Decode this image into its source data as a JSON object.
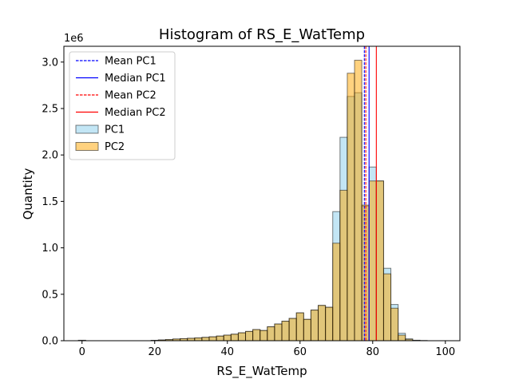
{
  "chart_data": {
    "type": "bar",
    "title": "Histogram of RS_E_WatTemp",
    "xlabel": "RS_E_WatTemp",
    "ylabel": "Quantity",
    "offset_text": "1e6",
    "xlim": [
      -5,
      104
    ],
    "ylim": [
      0,
      3.17
    ],
    "bin_start": -1.0,
    "bin_width": 2.0,
    "x_ticks": [
      0,
      20,
      40,
      60,
      80,
      100
    ],
    "y_ticks": [
      0.0,
      0.5,
      1.0,
      1.5,
      2.0,
      2.5,
      3.0
    ],
    "x_tick_labels": [
      "0",
      "20",
      "40",
      "60",
      "80",
      "100"
    ],
    "y_tick_labels": [
      "0.0",
      "0.5",
      "1.0",
      "1.5",
      "2.0",
      "2.5",
      "3.0"
    ],
    "series": [
      {
        "name": "PC1",
        "color": "#87ceeb",
        "values": [
          0.005,
          0,
          0,
          0,
          0,
          0,
          0,
          0,
          0,
          0,
          0.004,
          0.008,
          0.012,
          0.018,
          0.022,
          0.026,
          0.03,
          0.036,
          0.042,
          0.05,
          0.06,
          0.07,
          0.085,
          0.1,
          0.12,
          0.11,
          0.15,
          0.18,
          0.21,
          0.24,
          0.3,
          0.23,
          0.33,
          0.38,
          0.36,
          1.39,
          2.19,
          2.63,
          2.67,
          1.45,
          1.87,
          1.72,
          0.78,
          0.39,
          0.08,
          0.02,
          0.005,
          0.002,
          0,
          0
        ]
      },
      {
        "name": "PC2",
        "color": "#ffa500",
        "values": [
          0.003,
          0,
          0,
          0,
          0,
          0,
          0,
          0,
          0,
          0,
          0.004,
          0.008,
          0.012,
          0.018,
          0.022,
          0.026,
          0.03,
          0.036,
          0.042,
          0.05,
          0.06,
          0.07,
          0.085,
          0.1,
          0.12,
          0.11,
          0.15,
          0.18,
          0.21,
          0.24,
          0.3,
          0.23,
          0.33,
          0.38,
          0.36,
          1.05,
          1.62,
          2.88,
          3.02,
          1.46,
          1.72,
          1.72,
          0.72,
          0.35,
          0.06,
          0.015,
          0.004,
          0.001,
          0,
          0
        ]
      }
    ],
    "reference_lines": [
      {
        "name": "Mean PC1",
        "value": 77.7,
        "color": "#0000ff",
        "style": "dashed"
      },
      {
        "name": "Median PC1",
        "value": 79.0,
        "color": "#0000ff",
        "style": "solid"
      },
      {
        "name": "Mean PC2",
        "value": 78.1,
        "color": "#ff0000",
        "style": "dashed"
      },
      {
        "name": "Median PC2",
        "value": 81.0,
        "color": "#ff0000",
        "style": "solid"
      }
    ],
    "legend": {
      "placement": "upper-left",
      "entries": [
        "Mean PC1",
        "Median PC1",
        "Mean PC2",
        "Median PC2",
        "PC1",
        "PC2"
      ]
    },
    "grid": false
  }
}
